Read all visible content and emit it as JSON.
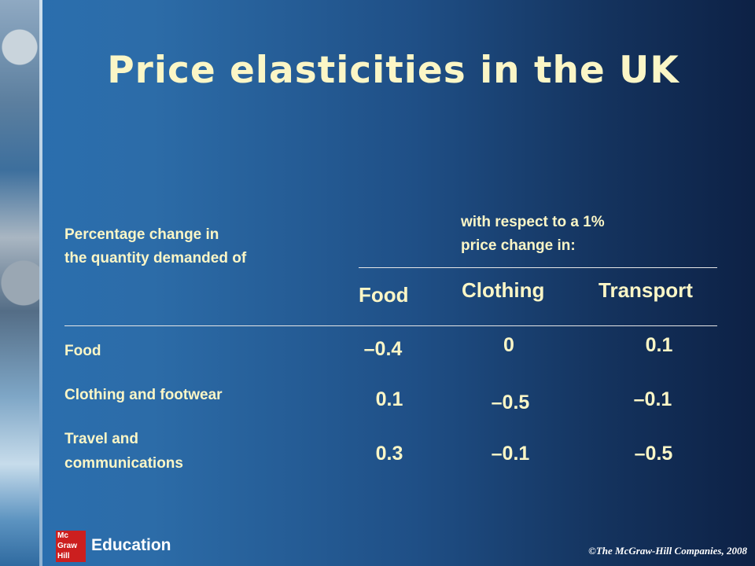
{
  "slide": {
    "title": "Price elasticities in the UK",
    "left_header_line1": "Percentage change in",
    "left_header_line2": "the quantity demanded of",
    "right_header_line1": "with respect to a 1%",
    "right_header_line2": "price change in:"
  },
  "table": {
    "columns": [
      "Food",
      "Clothing",
      "Transport"
    ],
    "rows": [
      {
        "label": [
          "Food"
        ],
        "values": [
          "–0.4",
          "0",
          "0.1"
        ]
      },
      {
        "label": [
          "Clothing and footwear"
        ],
        "values": [
          "0.1",
          "–0.5",
          "–0.1"
        ]
      },
      {
        "label": [
          "Travel and",
          "communications"
        ],
        "values": [
          "0.3",
          "–0.1",
          "–0.5"
        ]
      }
    ]
  },
  "footer": {
    "logo_line1": "Mc",
    "logo_line2": "Graw",
    "logo_line3": "Hill",
    "brand": "Education",
    "copyright": "©The McGraw-Hill Companies, 2008"
  }
}
